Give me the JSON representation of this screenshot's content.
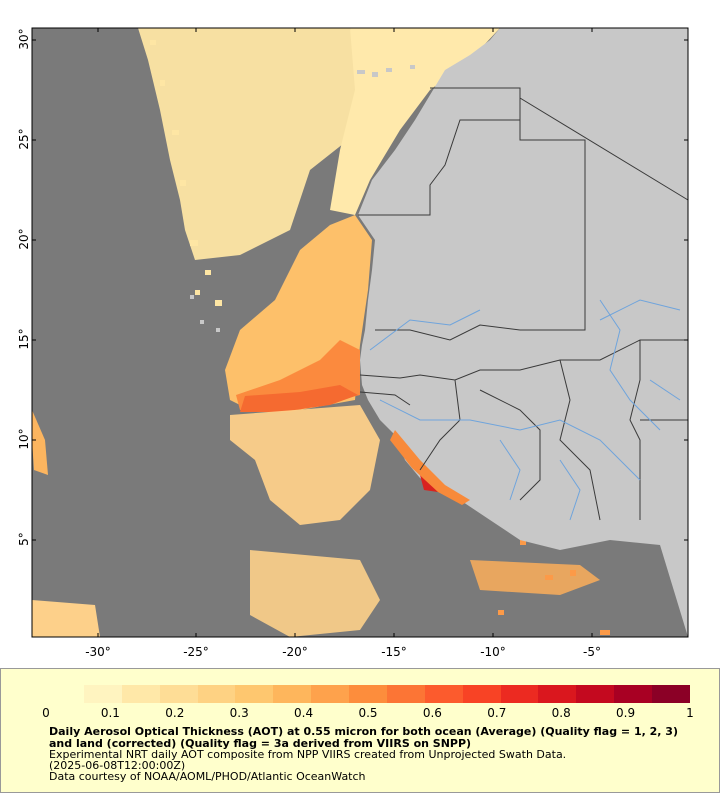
{
  "map": {
    "lat_ticks": [
      "30°",
      "25°",
      "20°",
      "15°",
      "10°",
      "5°"
    ],
    "lon_ticks": [
      "-30°",
      "-25°",
      "-20°",
      "-15°",
      "-10°",
      "-5°"
    ],
    "colors": {
      "ocean_nodata": "#7a7a7a",
      "land": "#c8c8c8",
      "border": "#3a3a3a",
      "river": "#6fa4dc"
    }
  },
  "legend": {
    "ticks": [
      "0",
      "0.1",
      "0.2",
      "0.3",
      "0.4",
      "0.5",
      "0.6",
      "0.7",
      "0.8",
      "0.9",
      "1"
    ],
    "colorscale": [
      "#ffffcc",
      "#fff4c0",
      "#ffe8a8",
      "#fedd96",
      "#fed283",
      "#fec76f",
      "#feb65c",
      "#fea24c",
      "#fd8d3c",
      "#fc7535",
      "#fc5b2d",
      "#f84325",
      "#ec2a21",
      "#da171e",
      "#c4091f",
      "#a80023",
      "#8b0026"
    ],
    "title": "Daily Aerosol Optical Thickness (AOT) at 0.55 micron for both ocean (Average) (Quality flag = 1, 2, 3) and land (corrected) (Quality flag = 3a derived from VIIRS on SNPP)",
    "line1": "Experimental NRT daily AOT composite from NPP VIIRS created from Unprojected Swath Data.",
    "line2": "(2025-06-08T12:00:00Z)",
    "line3": "Data courtesy of NOAA/AOML/PHOD/Atlantic OceanWatch"
  }
}
